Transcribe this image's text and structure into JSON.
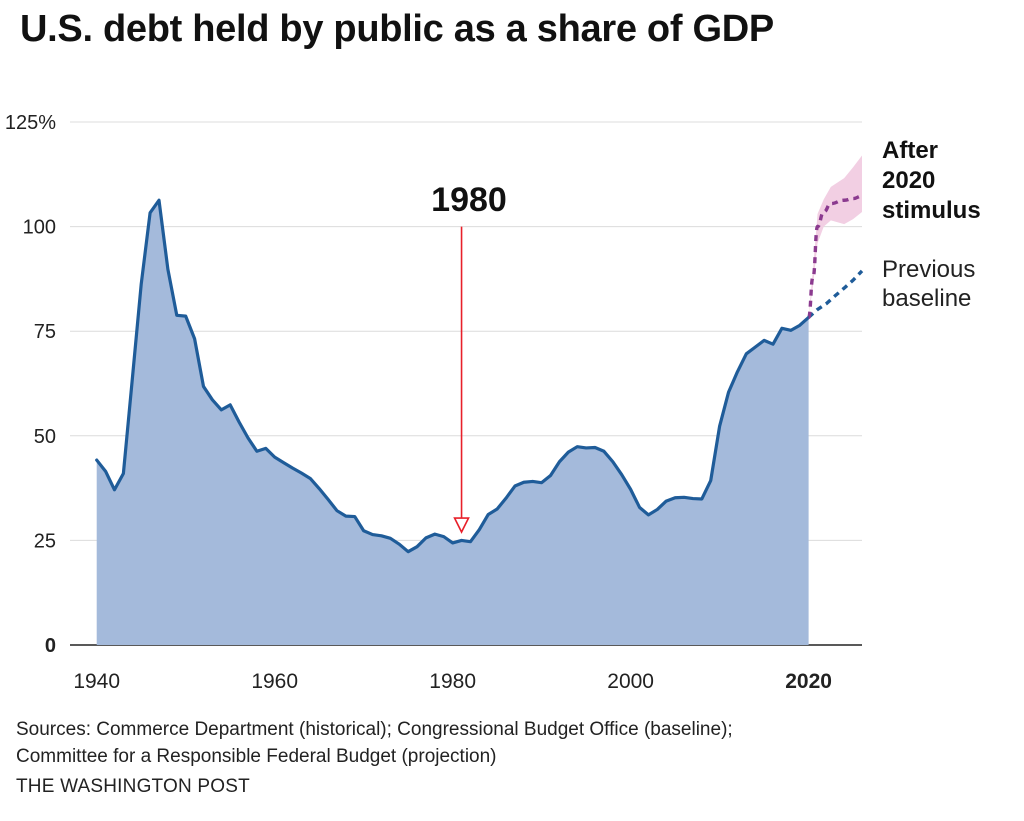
{
  "chart_data": {
    "type": "area",
    "title": "U.S. debt held by public as a share of GDP",
    "xlabel": "",
    "ylabel": "",
    "xlim": [
      1937,
      2026
    ],
    "ylim": [
      0,
      125
    ],
    "grid": true,
    "y_ticks": [
      {
        "value": 0,
        "label": "0",
        "bold": true
      },
      {
        "value": 25,
        "label": "25",
        "bold": false
      },
      {
        "value": 50,
        "label": "50",
        "bold": false
      },
      {
        "value": 75,
        "label": "75",
        "bold": false
      },
      {
        "value": 100,
        "label": "100",
        "bold": false
      },
      {
        "value": 125,
        "label": "125%",
        "bold": false
      }
    ],
    "x_ticks": [
      {
        "value": 1940,
        "label": "1940",
        "bold": false
      },
      {
        "value": 1960,
        "label": "1960",
        "bold": false
      },
      {
        "value": 1980,
        "label": "1980",
        "bold": false
      },
      {
        "value": 2000,
        "label": "2000",
        "bold": false
      },
      {
        "value": 2020,
        "label": "2020",
        "bold": true
      }
    ],
    "historical": {
      "x": [
        1940,
        1941,
        1942,
        1943,
        1944,
        1945,
        1946,
        1947,
        1948,
        1949,
        1950,
        1951,
        1952,
        1953,
        1954,
        1955,
        1956,
        1957,
        1958,
        1959,
        1960,
        1961,
        1962,
        1963,
        1964,
        1965,
        1966,
        1967,
        1968,
        1969,
        1970,
        1971,
        1972,
        1973,
        1974,
        1975,
        1976,
        1977,
        1978,
        1979,
        1980,
        1981,
        1982,
        1983,
        1984,
        1985,
        1986,
        1987,
        1988,
        1989,
        1990,
        1991,
        1992,
        1993,
        1994,
        1995,
        1996,
        1997,
        1998,
        1999,
        2000,
        2001,
        2002,
        2003,
        2004,
        2005,
        2006,
        2007,
        2008,
        2009,
        2010,
        2011,
        2012,
        2013,
        2014,
        2015,
        2016,
        2017,
        2018,
        2019,
        2020
      ],
      "y": [
        44.2,
        41.5,
        37.1,
        41.0,
        63.5,
        86.2,
        103.3,
        106.3,
        89.8,
        78.8,
        78.6,
        73.2,
        61.8,
        58.6,
        56.2,
        57.4,
        53.3,
        49.5,
        46.3,
        47.0,
        44.9,
        43.6,
        42.3,
        41.1,
        39.8,
        37.4,
        34.8,
        32.1,
        30.8,
        30.7,
        27.3,
        26.4,
        26.1,
        25.5,
        24.1,
        22.3,
        23.5,
        25.6,
        26.5,
        25.9,
        24.4,
        25.0,
        24.7,
        27.6,
        31.2,
        32.5,
        35.1,
        38.0,
        38.9,
        39.1,
        38.8,
        40.5,
        43.8,
        46.1,
        47.4,
        47.1,
        47.2,
        46.3,
        43.8,
        40.7,
        37.2,
        32.9,
        31.1,
        32.4,
        34.4,
        35.2,
        35.3,
        35.0,
        34.9,
        39.3,
        52.3,
        60.4,
        65.3,
        69.6,
        71.2,
        72.8,
        71.9,
        75.7,
        75.2,
        76.4,
        78.3
      ]
    },
    "series": [
      {
        "name": "After 2020 stimulus",
        "color": "#8b3a8f",
        "x": [
          2020,
          2020.5,
          2021,
          2021.7,
          2022.5,
          2024,
          2025,
          2026
        ],
        "y": [
          78.3,
          88,
          100,
          103.5,
          105.5,
          106.3,
          106.7,
          107.3
        ],
        "range_low": [
          78.3,
          86,
          96,
          100,
          101.5,
          100.6,
          101.8,
          103.5
        ],
        "range_high": [
          78.3,
          90,
          103,
          106.5,
          109.5,
          111.6,
          114.2,
          117
        ]
      },
      {
        "name": "Previous baseline",
        "color": "#1f5c99",
        "x": [
          2020,
          2021,
          2022,
          2023,
          2024,
          2025,
          2026
        ],
        "y": [
          78.3,
          80.2,
          81.6,
          83.5,
          85.3,
          87.2,
          89.4
        ]
      }
    ],
    "annotation": {
      "label": "1980",
      "x": 1981,
      "y_top": 100,
      "y_bottom": 27
    }
  },
  "labels": {
    "stimulus_line1": "After",
    "stimulus_line2": "2020",
    "stimulus_line3": "stimulus",
    "baseline_line1": "Previous",
    "baseline_line2": "baseline"
  },
  "footer": {
    "sources_line1": "Sources: Commerce Department (historical); Congressional Budget Office (baseline);",
    "sources_line2": "Committee for a Responsible Federal Budget (projection)",
    "credit": "THE WASHINGTON POST"
  },
  "colors": {
    "area_fill": "#a4badb",
    "historical_line": "#1f5c99",
    "stimulus_line": "#8b3a8f",
    "stimulus_band": "#f2cfe3",
    "baseline_line": "#1f5c99",
    "annotation_arrow": "#e8202a"
  }
}
